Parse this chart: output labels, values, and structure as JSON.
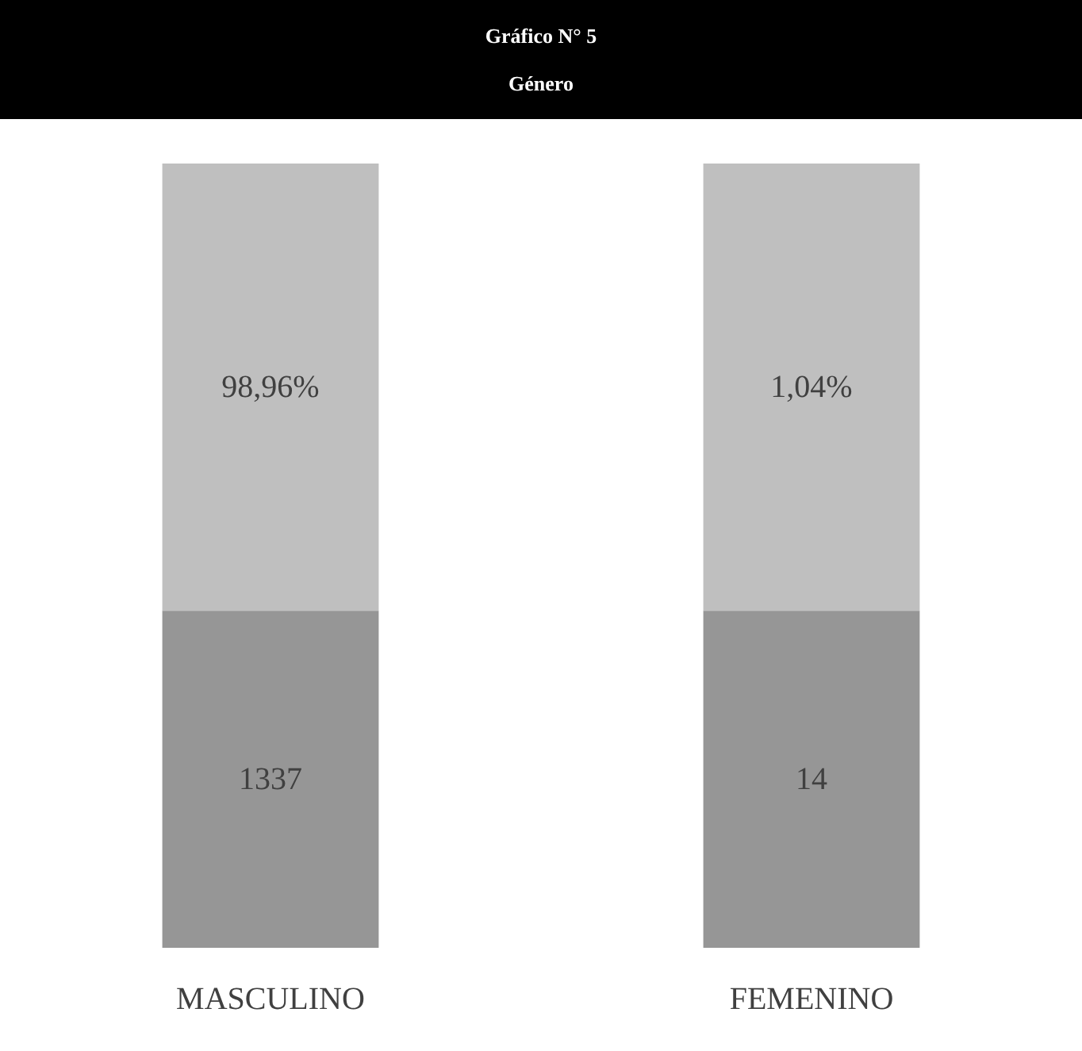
{
  "chart_data": {
    "type": "other",
    "title": "Gráfico N° 5",
    "subtitle": "Género",
    "categories": [
      "MASCULINO",
      "FEMENINO"
    ],
    "data_labels": true,
    "series": [
      {
        "color": "#969696",
        "values": [
          1337,
          14
        ]
      },
      {
        "color": "#bfbfbf",
        "values": [
          98.96,
          1.04
        ],
        "value_labels": [
          "98,96%",
          "1,04%"
        ]
      }
    ]
  }
}
